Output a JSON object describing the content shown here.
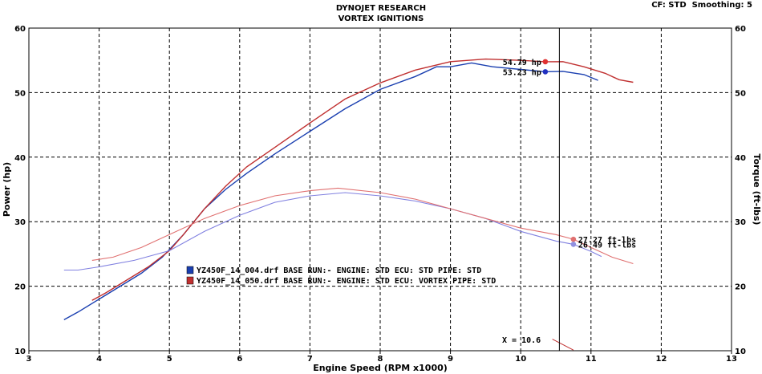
{
  "chart_data": {
    "type": "line",
    "title": "DYNOJET RESEARCH",
    "subtitle": "VORTEX IGNITIONS",
    "header_right": "CF: STD  Smoothing: 5",
    "xlabel": "Engine Speed (RPM x1000)",
    "ylabel_left": "Power (hp)",
    "ylabel_right": "Torque (ft-lbs)",
    "xlim": [
      3,
      13
    ],
    "ylim": [
      10,
      60
    ],
    "xticks": [
      "3",
      "4",
      "5",
      "6",
      "7",
      "8",
      "9",
      "10",
      "11",
      "12",
      "13"
    ],
    "yticks_left": [
      "10",
      "20",
      "30",
      "40",
      "50",
      "60"
    ],
    "yticks_right": [
      "10",
      "20",
      "30",
      "40",
      "50",
      "60"
    ],
    "grid": true,
    "cursor": {
      "x": 10.55,
      "label": "X = 10.6"
    },
    "colors": {
      "blue_power": "#1a3fb0",
      "red_power": "#c03030",
      "blue_torque": "#8080e0",
      "red_torque": "#e07070"
    },
    "series": [
      {
        "name": "YZ450F_14_004.drf BASE RUN:-  ENGINE: STD ECU: STD PIPE: STD",
        "kind": "power",
        "color": "#1a3fb0",
        "x": [
          3.5,
          3.7,
          4.0,
          4.3,
          4.6,
          4.9,
          5.2,
          5.5,
          5.8,
          6.1,
          6.5,
          7.0,
          7.5,
          8.0,
          8.5,
          8.8,
          9.0,
          9.3,
          9.6,
          10.0,
          10.35,
          10.6,
          10.9,
          11.1
        ],
        "y": [
          14.8,
          16.0,
          18.0,
          20.0,
          22.0,
          24.5,
          28.0,
          32.0,
          35.0,
          37.5,
          40.5,
          44.0,
          47.5,
          50.5,
          52.5,
          54.0,
          54.0,
          54.6,
          54.0,
          53.6,
          53.23,
          53.3,
          52.8,
          51.9
        ]
      },
      {
        "name": "YZ450F_14_050.drf BASE RUN:-  ENGINE: STD ECU: VORTEX  PIPE: STD",
        "kind": "power",
        "color": "#c03030",
        "x": [
          3.9,
          4.1,
          4.4,
          4.7,
          5.0,
          5.2,
          5.5,
          5.8,
          6.1,
          6.5,
          7.0,
          7.5,
          8.0,
          8.5,
          9.0,
          9.5,
          10.0,
          10.35,
          10.6,
          10.9,
          11.2,
          11.4,
          11.6
        ],
        "y": [
          17.8,
          19.0,
          21.0,
          23.0,
          25.5,
          28.0,
          32.0,
          35.5,
          38.5,
          41.5,
          45.3,
          49.0,
          51.5,
          53.5,
          54.8,
          55.2,
          55.0,
          54.79,
          54.8,
          54.0,
          53.0,
          52.0,
          51.6
        ]
      },
      {
        "name": "YZ450F_14_004.drf torque",
        "kind": "torque",
        "color": "#8080e0",
        "x": [
          3.5,
          3.7,
          4.0,
          4.5,
          5.0,
          5.5,
          6.0,
          6.5,
          7.0,
          7.5,
          8.0,
          8.5,
          9.0,
          9.5,
          10.0,
          10.5,
          10.75,
          11.0,
          11.15
        ],
        "y": [
          22.5,
          22.5,
          23.0,
          24.0,
          25.5,
          28.5,
          31.0,
          33.0,
          34.0,
          34.5,
          34.0,
          33.2,
          32.0,
          30.5,
          28.5,
          27.0,
          26.49,
          25.4,
          24.6
        ]
      },
      {
        "name": "YZ450F_14_050.drf torque",
        "kind": "torque",
        "color": "#e07070",
        "x": [
          3.9,
          4.2,
          4.6,
          5.0,
          5.5,
          6.0,
          6.5,
          7.0,
          7.4,
          8.0,
          8.5,
          9.0,
          9.5,
          10.0,
          10.5,
          10.75,
          11.0,
          11.3,
          11.6
        ],
        "y": [
          24.0,
          24.5,
          26.0,
          28.0,
          30.5,
          32.5,
          34.0,
          34.8,
          35.2,
          34.5,
          33.5,
          32.0,
          30.5,
          29.0,
          28.0,
          27.27,
          26.0,
          24.5,
          23.5
        ]
      }
    ],
    "markers": [
      {
        "x": 10.35,
        "y": 54.79,
        "color": "#e03030",
        "label": "54.79 hp",
        "side": "left"
      },
      {
        "x": 10.35,
        "y": 53.23,
        "color": "#2030c0",
        "label": "53.23 hp",
        "side": "left"
      },
      {
        "x": 10.75,
        "y": 27.27,
        "color": "#e07070",
        "label": "27.27 ft-lbs",
        "side": "right"
      },
      {
        "x": 10.75,
        "y": 26.49,
        "color": "#9090e0",
        "label": "26.49 ft-lbs",
        "side": "right"
      }
    ],
    "legend": [
      {
        "label": "YZ450F_14_004.drf BASE RUN:-  ENGINE: STD ECU: STD PIPE: STD",
        "color": "#1a3fb0"
      },
      {
        "label": "YZ450F_14_050.drf BASE RUN:-  ENGINE: STD ECU: VORTEX  PIPE: STD",
        "color": "#c03030"
      }
    ]
  }
}
